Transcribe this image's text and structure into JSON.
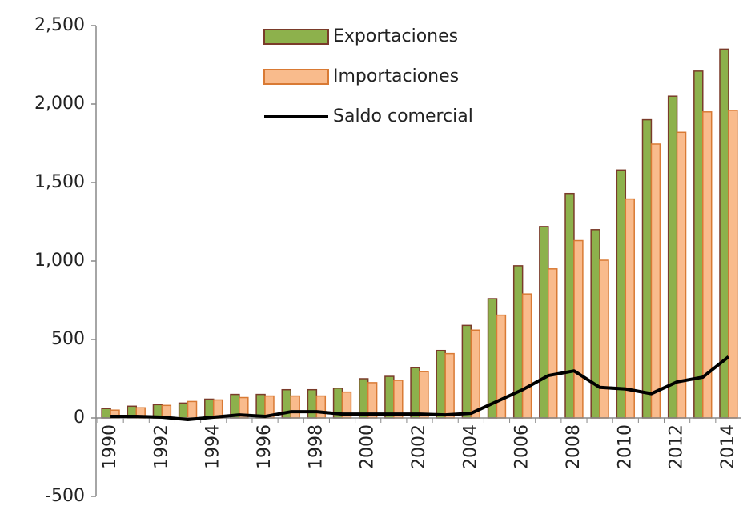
{
  "chart_data": {
    "type": "bar_line",
    "categories": [
      "1990",
      null,
      "1992",
      null,
      "1994",
      null,
      "1996",
      null,
      "1998",
      null,
      "2000",
      null,
      "2002",
      null,
      "2004",
      null,
      "2006",
      null,
      "2008",
      null,
      "2010",
      null,
      "2012",
      null,
      "2014"
    ],
    "series": [
      {
        "name": "Exportaciones",
        "type": "bar",
        "color": "#8db14c",
        "edge": "#7a3b2a",
        "values": [
          60,
          75,
          85,
          95,
          120,
          150,
          150,
          180,
          180,
          190,
          250,
          265,
          320,
          430,
          590,
          760,
          970,
          1220,
          1430,
          1200,
          1580,
          1900,
          2050,
          2210,
          2350
        ]
      },
      {
        "name": "Importaciones",
        "type": "bar",
        "color": "#f9bb8c",
        "edge": "#d97a34",
        "values": [
          50,
          65,
          80,
          105,
          115,
          130,
          140,
          140,
          140,
          165,
          225,
          240,
          295,
          410,
          560,
          655,
          790,
          950,
          1130,
          1005,
          1395,
          1745,
          1820,
          1950,
          1960
        ]
      },
      {
        "name": "Saldo comercial",
        "type": "line",
        "color": "#000000",
        "values": [
          10,
          10,
          5,
          -10,
          5,
          20,
          10,
          40,
          40,
          25,
          25,
          25,
          25,
          20,
          30,
          105,
          180,
          270,
          300,
          195,
          185,
          155,
          230,
          260,
          390
        ]
      }
    ],
    "ylim": [
      -500,
      2500
    ],
    "yticks": [
      -500,
      0,
      500,
      {
        "value": 1000,
        "label": "1,000"
      },
      {
        "value": 1500,
        "label": "1,500"
      },
      {
        "value": 2000,
        "label": "2,000"
      },
      {
        "value": 2500,
        "label": "2,500"
      }
    ],
    "grid": false,
    "legend": "top"
  }
}
